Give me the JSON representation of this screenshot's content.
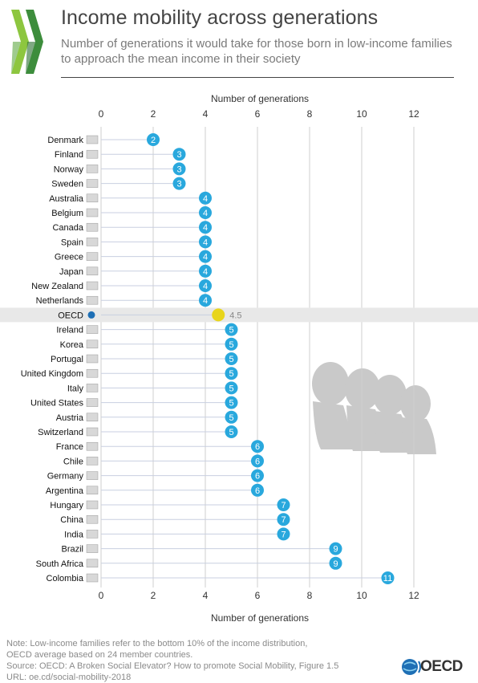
{
  "header": {
    "title": "Income mobility across generations",
    "subtitle": "Number of generations it would take for those born in low-income families to approach the mean income in their society"
  },
  "footer": {
    "note_lines": [
      "Note: Low-income families refer to the bottom 10% of the income distribution,",
      "OECD average based on 24 member countries.",
      "Source: OECD: A Broken Social Elevator? How to promote Social Mobility, Figure 1.5",
      "URL: oe.cd/social-mobility-2018"
    ],
    "logo_text": "OECD"
  },
  "colors": {
    "marker": "#29a8dd",
    "highlight": "#e8d51b",
    "highlight_row": "#e8e8e8",
    "line": "#c8cfe0"
  },
  "chart_data": {
    "type": "dot",
    "title": "Income mobility across generations",
    "subtitle": "Number of generations it would take for those born in low-income families to approach the mean income in their society",
    "xlabel": "Number of generations",
    "xlim": [
      0,
      12
    ],
    "xticks": [
      0,
      2,
      4,
      6,
      8,
      10,
      12
    ],
    "grid": true,
    "highlight": "OECD",
    "categories": [
      "Denmark",
      "Finland",
      "Norway",
      "Sweden",
      "Australia",
      "Belgium",
      "Canada",
      "Spain",
      "Greece",
      "Japan",
      "New Zealand",
      "Netherlands",
      "OECD",
      "Ireland",
      "Korea",
      "Portugal",
      "United Kingdom",
      "Italy",
      "United States",
      "Austria",
      "Switzerland",
      "France",
      "Chile",
      "Germany",
      "Argentina",
      "Hungary",
      "China",
      "India",
      "Brazil",
      "South Africa",
      "Colombia"
    ],
    "values": [
      2,
      3,
      3,
      3,
      4,
      4,
      4,
      4,
      4,
      4,
      4,
      4,
      4.5,
      5,
      5,
      5,
      5,
      5,
      5,
      5,
      5,
      6,
      6,
      6,
      6,
      7,
      7,
      7,
      9,
      9,
      11
    ],
    "value_labels": [
      "2",
      "3",
      "3",
      "3",
      "4",
      "4",
      "4",
      "4",
      "4",
      "4",
      "4",
      "4",
      "4.5",
      "5",
      "5",
      "5",
      "5",
      "5",
      "5",
      "5",
      "5",
      "6",
      "6",
      "6",
      "6",
      "7",
      "7",
      "7",
      "9",
      "9",
      "11"
    ]
  }
}
